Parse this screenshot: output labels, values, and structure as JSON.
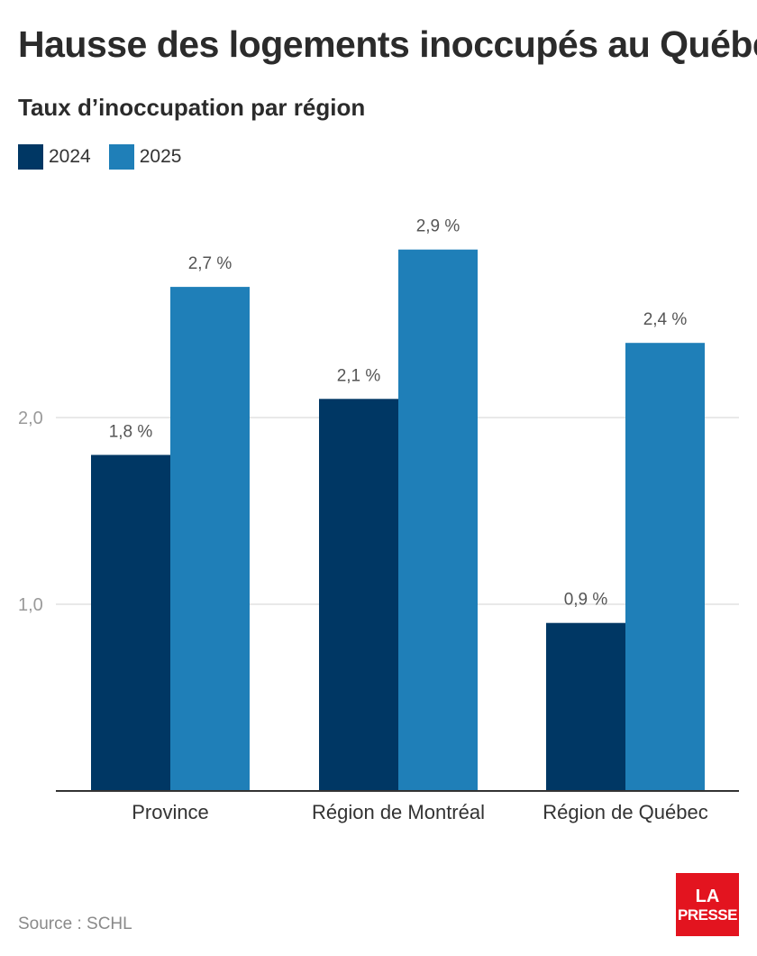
{
  "chart_data": {
    "type": "bar",
    "title": "Hausse des logements inoccupés au Québec",
    "subtitle": "Taux d’inoccupation par région",
    "categories": [
      "Province",
      "Région de Montréal",
      "Région de Québec"
    ],
    "series": [
      {
        "name": "2024",
        "values": [
          1.8,
          2.1,
          0.9
        ],
        "labels": [
          "1,8 %",
          "2,1 %",
          "0,9 %"
        ],
        "color": "#003764"
      },
      {
        "name": "2025",
        "values": [
          2.7,
          2.9,
          2.4
        ],
        "labels": [
          "2,7 %",
          "2,9 %",
          "2,4 %"
        ],
        "color": "#1f7fb8"
      }
    ],
    "y_ticks": [
      {
        "value": 1.0,
        "label": "1,0"
      },
      {
        "value": 2.0,
        "label": "2,0"
      }
    ],
    "ylim": [
      0,
      3.0
    ],
    "grid": true,
    "legend_position": "top-left"
  },
  "source": "Source : SCHL",
  "logo": {
    "line1": "LA",
    "line2": "PRESSE",
    "color": "#e3141f"
  }
}
